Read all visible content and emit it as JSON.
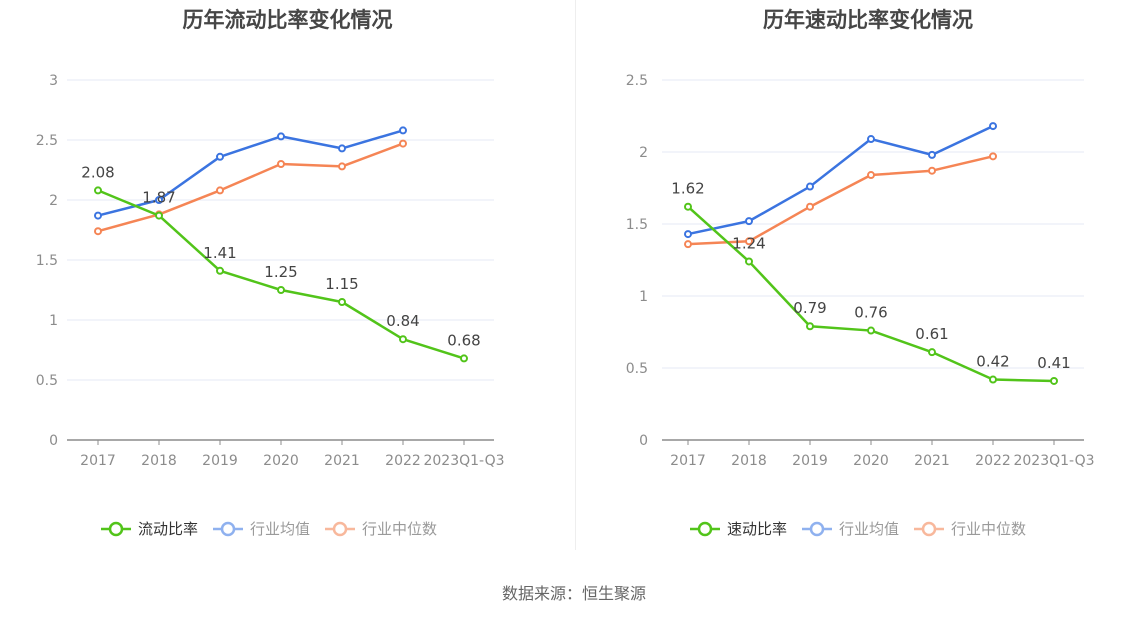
{
  "footer": {
    "source": "数据来源：恒生聚源"
  },
  "chart_data": [
    {
      "type": "line",
      "title": "历年流动比率变化情况",
      "categories": [
        "2017",
        "2018",
        "2019",
        "2020",
        "2021",
        "2022",
        "2023Q1-Q3"
      ],
      "ylim": [
        0,
        3
      ],
      "yticks": [
        0,
        0.5,
        1,
        1.5,
        2,
        2.5,
        3
      ],
      "ytick_labels": [
        "0",
        "0.5",
        "1",
        "1.5",
        "2",
        "2.5",
        "3"
      ],
      "grid": true,
      "legend_position": "bottom",
      "series": [
        {
          "name": "流动比率",
          "color": "#52c41a",
          "labels": true,
          "values": [
            2.08,
            1.87,
            1.41,
            1.25,
            1.15,
            0.84,
            0.68
          ]
        },
        {
          "name": "行业均值",
          "color": "#3b74e0",
          "labels": false,
          "values": [
            1.87,
            2.0,
            2.36,
            2.53,
            2.43,
            2.58,
            null
          ]
        },
        {
          "name": "行业中位数",
          "color": "#f58555",
          "labels": false,
          "values": [
            1.74,
            1.88,
            2.08,
            2.3,
            2.28,
            2.47,
            null
          ]
        }
      ],
      "legend_colors": [
        "#52c41a",
        "#8fb1ef",
        "#f8b89c"
      ]
    },
    {
      "type": "line",
      "title": "历年速动比率变化情况",
      "categories": [
        "2017",
        "2018",
        "2019",
        "2020",
        "2021",
        "2022",
        "2023Q1-Q3"
      ],
      "ylim": [
        0,
        2.5
      ],
      "yticks": [
        0,
        0.5,
        1,
        1.5,
        2,
        2.5
      ],
      "ytick_labels": [
        "0",
        "0.5",
        "1",
        "1.5",
        "2",
        "2.5"
      ],
      "grid": true,
      "legend_position": "bottom",
      "series": [
        {
          "name": "速动比率",
          "color": "#52c41a",
          "labels": true,
          "values": [
            1.62,
            1.24,
            0.79,
            0.76,
            0.61,
            0.42,
            0.41
          ]
        },
        {
          "name": "行业均值",
          "color": "#3b74e0",
          "labels": false,
          "values": [
            1.43,
            1.52,
            1.76,
            2.09,
            1.98,
            2.18,
            null
          ]
        },
        {
          "name": "行业中位数",
          "color": "#f58555",
          "labels": false,
          "values": [
            1.36,
            1.38,
            1.62,
            1.84,
            1.87,
            1.97,
            null
          ]
        }
      ],
      "legend_colors": [
        "#52c41a",
        "#8fb1ef",
        "#f8b89c"
      ]
    }
  ]
}
